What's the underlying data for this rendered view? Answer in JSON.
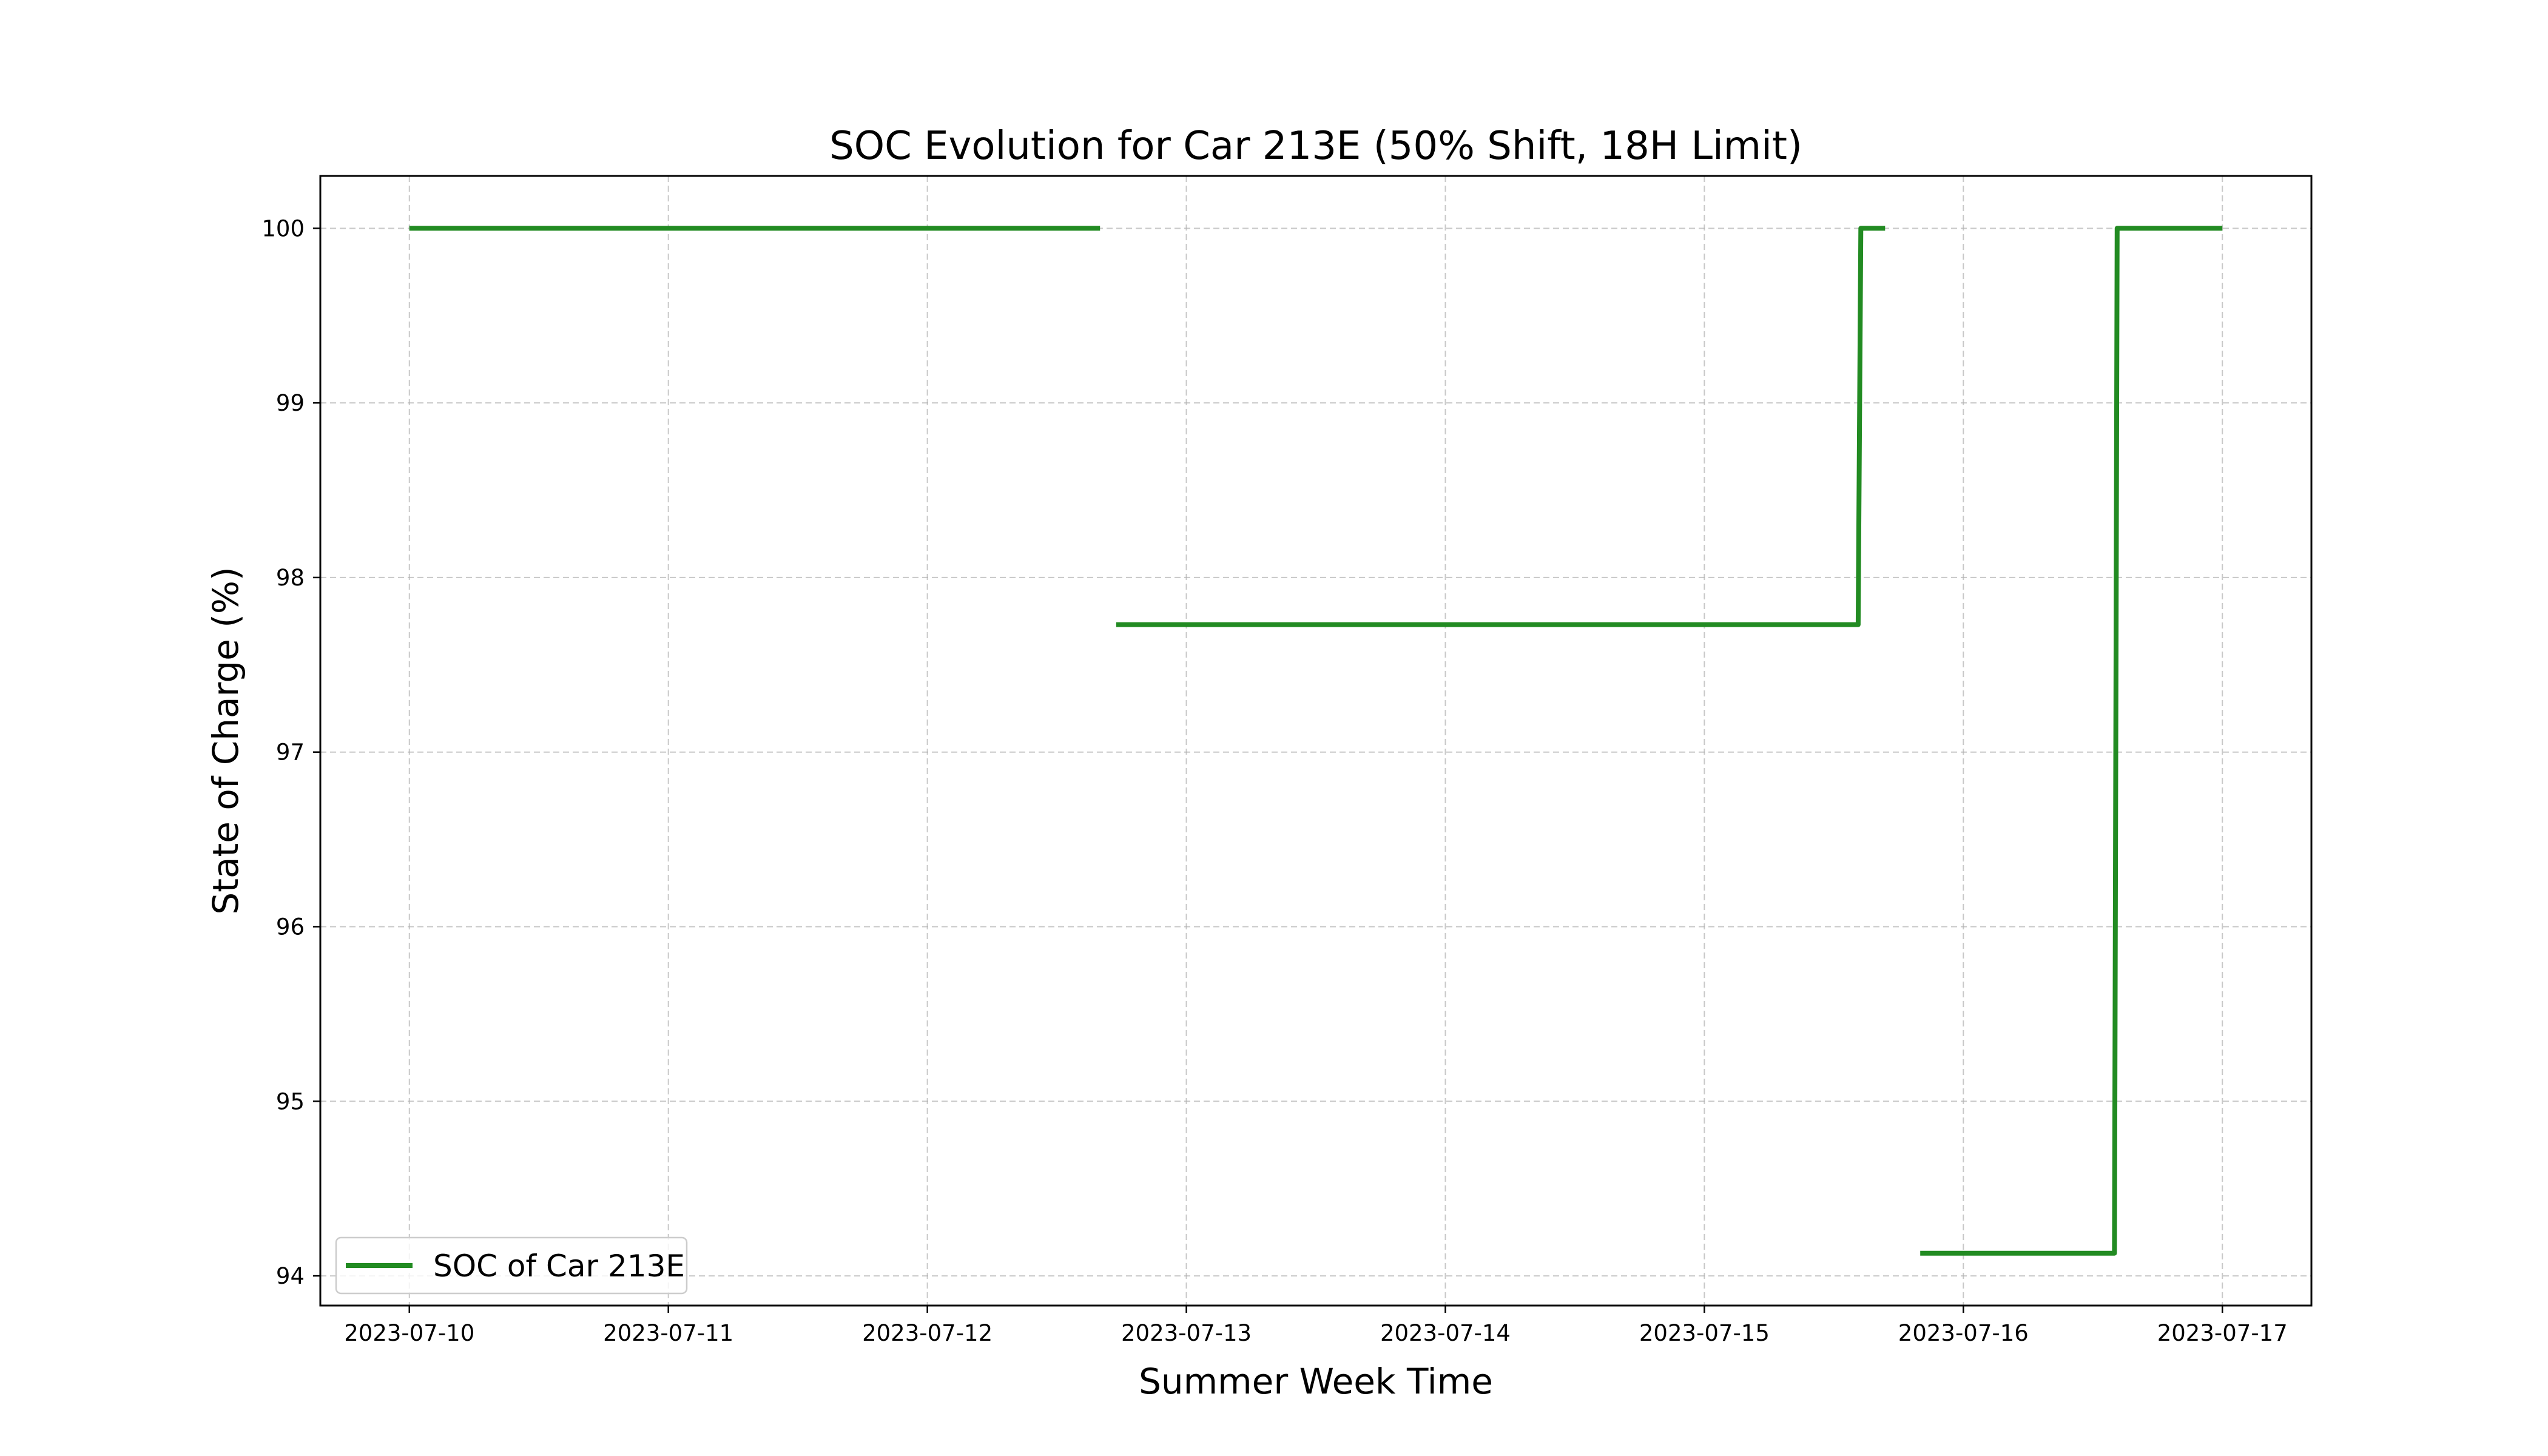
{
  "chart_data": {
    "type": "line",
    "title": "SOC Evolution for Car 213E (50% Shift, 18H Limit)",
    "xlabel": "Summer Week Time",
    "ylabel": "State of Charge (%)",
    "x_ticks": [
      "2023-07-10",
      "2023-07-11",
      "2023-07-12",
      "2023-07-13",
      "2023-07-14",
      "2023-07-15",
      "2023-07-16",
      "2023-07-17"
    ],
    "y_ticks": [
      94,
      95,
      96,
      97,
      98,
      99,
      100
    ],
    "xlim": [
      "2023-07-09 15:45",
      "2023-07-17 08:15"
    ],
    "ylim": [
      93.83,
      100.3
    ],
    "grid": true,
    "legend_position": "lower-left",
    "series": [
      {
        "name": "SOC of Car 213E",
        "color": "#228b22",
        "segments": [
          [
            {
              "x": "2023-07-10 00:00",
              "y": 100.0
            },
            {
              "x": "2023-07-12 16:00",
              "y": 100.0
            }
          ],
          [
            {
              "x": "2023-07-12 17:30",
              "y": 97.73
            },
            {
              "x": "2023-07-15 14:15",
              "y": 97.73
            },
            {
              "x": "2023-07-15 14:30",
              "y": 100.0
            },
            {
              "x": "2023-07-15 16:45",
              "y": 100.0
            }
          ],
          [
            {
              "x": "2023-07-15 20:00",
              "y": 94.13
            },
            {
              "x": "2023-07-16 14:00",
              "y": 94.13
            },
            {
              "x": "2023-07-16 14:15",
              "y": 100.0
            },
            {
              "x": "2023-07-17 00:00",
              "y": 100.0
            }
          ]
        ]
      }
    ]
  }
}
